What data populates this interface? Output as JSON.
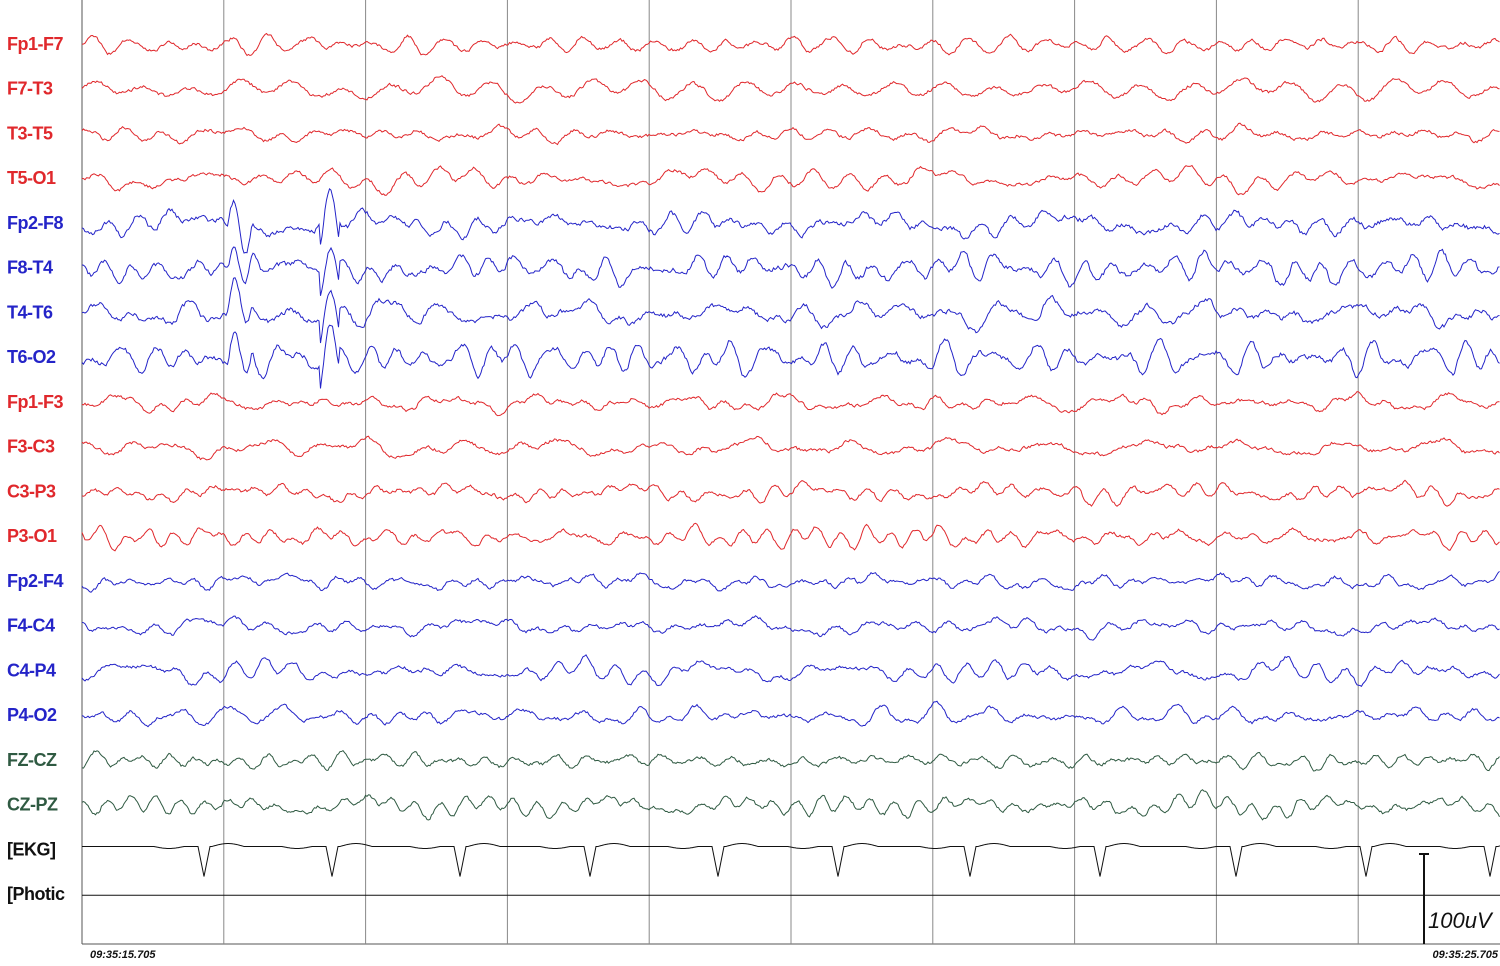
{
  "channels": [
    {
      "label": "Fp1-F7",
      "color": "#e0282c"
    },
    {
      "label": "F7-T3",
      "color": "#e0282c"
    },
    {
      "label": "T3-T5",
      "color": "#e0282c"
    },
    {
      "label": "T5-O1",
      "color": "#e0282c"
    },
    {
      "label": "Fp2-F8",
      "color": "#2424c8"
    },
    {
      "label": "F8-T4",
      "color": "#2424c8"
    },
    {
      "label": "T4-T6",
      "color": "#2424c8"
    },
    {
      "label": "T6-O2",
      "color": "#2424c8"
    },
    {
      "label": "Fp1-F3",
      "color": "#e0282c"
    },
    {
      "label": "F3-C3",
      "color": "#e0282c"
    },
    {
      "label": "C3-P3",
      "color": "#e0282c"
    },
    {
      "label": "P3-O1",
      "color": "#e0282c"
    },
    {
      "label": "Fp2-F4",
      "color": "#2424c8"
    },
    {
      "label": "F4-C4",
      "color": "#2424c8"
    },
    {
      "label": "C4-P4",
      "color": "#2424c8"
    },
    {
      "label": "P4-O2",
      "color": "#2424c8"
    },
    {
      "label": "FZ-CZ",
      "color": "#2f5a42"
    },
    {
      "label": "CZ-PZ",
      "color": "#2f5a42"
    },
    {
      "label": "[EKG]",
      "color": "#111111"
    },
    {
      "label": "[Photic",
      "color": "#111111"
    }
  ],
  "start_time": "09:35:15.705",
  "end_time": "09:35:25.705",
  "scale_label": "100uV"
}
